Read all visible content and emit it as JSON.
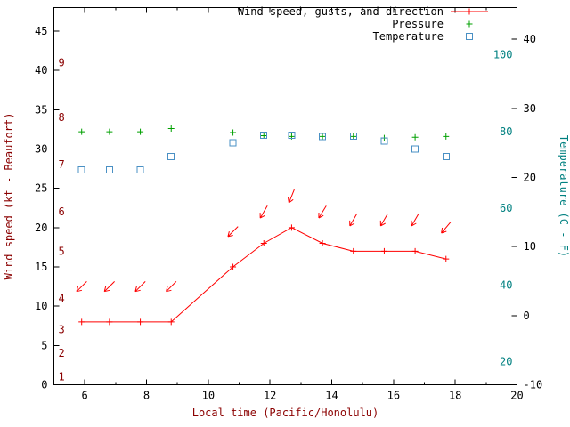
{
  "page": {
    "background": "#ffffff"
  },
  "legend": {
    "entries": [
      {
        "label": "Wind speed, gusts, and direction",
        "marker": "line-plus",
        "color": "#ff0000"
      },
      {
        "label": "Pressure",
        "marker": "plus",
        "color": "#00a000"
      },
      {
        "label": "Temperature",
        "marker": "open-square",
        "color": "#4a90c4"
      }
    ]
  },
  "chart_data": {
    "type": "line",
    "title": "",
    "xlabel": "Local time (Pacific/Honolulu)",
    "ylabel_left": "Wind speed (kt - Beaufort)",
    "ylabel_right": "Temperature (C - F)",
    "xlim": [
      5,
      20
    ],
    "ylim_left_kt": [
      0,
      48
    ],
    "ylim_right_C": [
      -10,
      44.6
    ],
    "x_ticks": [
      6,
      8,
      10,
      12,
      14,
      16,
      18,
      20
    ],
    "left_ticks_kt": [
      0,
      5,
      10,
      15,
      20,
      25,
      30,
      35,
      40,
      45
    ],
    "right_ticks_C": [
      -10,
      0,
      10,
      20,
      30,
      40
    ],
    "inner_labels_F": [
      20,
      40,
      60,
      80,
      100
    ],
    "beaufort_scale": [
      {
        "b": 1,
        "kt": 1
      },
      {
        "b": 2,
        "kt": 4
      },
      {
        "b": 3,
        "kt": 7
      },
      {
        "b": 4,
        "kt": 11
      },
      {
        "b": 5,
        "kt": 17
      },
      {
        "b": 6,
        "kt": 22
      },
      {
        "b": 7,
        "kt": 28
      },
      {
        "b": 8,
        "kt": 34
      },
      {
        "b": 9,
        "kt": 41
      }
    ],
    "x_hours": [
      5.9,
      6.8,
      7.8,
      8.8,
      10.8,
      11.8,
      12.7,
      13.7,
      14.7,
      15.7,
      16.7,
      17.7
    ],
    "series": [
      {
        "name": "wind_speed_kt",
        "color": "#ff0000",
        "values": [
          8,
          8,
          8,
          8,
          15,
          18,
          20,
          18,
          17,
          17,
          17,
          16
        ]
      },
      {
        "name": "wind_gust_kt_with_direction_arrows",
        "color": "#ff0000",
        "values": [
          12.5,
          12.5,
          12.5,
          12.5,
          19.5,
          22,
          24,
          22,
          21,
          21,
          21,
          20
        ],
        "arrow_angles_deg": [
          135,
          135,
          135,
          135,
          135,
          120,
          112,
          122,
          120,
          120,
          120,
          130
        ]
      },
      {
        "name": "pressure_plotted_on_left_axis_units",
        "color": "#00a000",
        "values": [
          32.2,
          32.2,
          32.2,
          32.6,
          32.1,
          31.7,
          31.6,
          31.6,
          31.6,
          31.4,
          31.5,
          31.6
        ]
      },
      {
        "name": "temperature_C",
        "color": "#4a90c4",
        "values": [
          21.1,
          21.1,
          21.1,
          23.0,
          25.0,
          26.1,
          26.1,
          25.9,
          26.0,
          25.3,
          24.1,
          23.0
        ]
      }
    ]
  },
  "colors": {
    "wind": "#ff0000",
    "pressure": "#00a000",
    "temperature": "#4a90c4",
    "left_axis_title": "#8b0000",
    "right_axis_title": "#008080",
    "x_axis_title": "#8b0000",
    "beaufort_labels": "#8b0000",
    "fahrenheit_labels": "#008080",
    "tick_labels": "#000000",
    "border": "#000000"
  }
}
